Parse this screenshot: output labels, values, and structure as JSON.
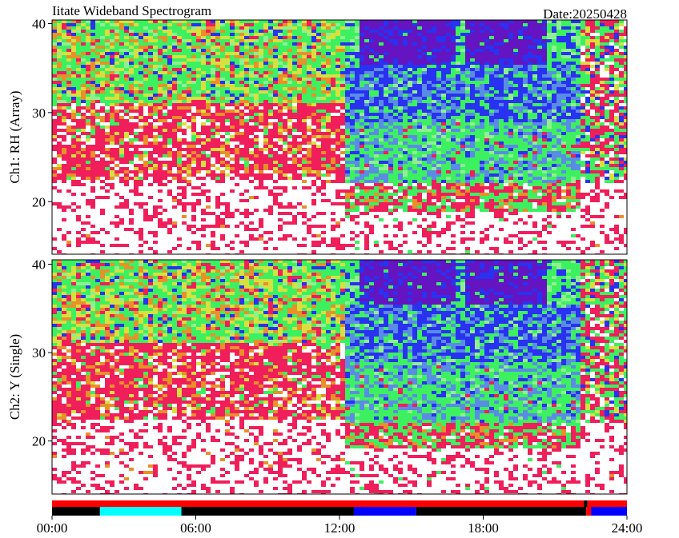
{
  "title": "Iitate Wideband Spectrogram",
  "date_label": "Date:20250428",
  "chart_data": [
    {
      "type": "spectrogram",
      "ylabel": "Ch1: RH (Array)",
      "xlim": [
        0,
        24
      ],
      "ylim": [
        14.1,
        40.4
      ],
      "yticks": [
        20,
        30,
        40
      ]
    },
    {
      "type": "spectrogram",
      "ylabel": "Ch2: Y (Single)",
      "xlim": [
        0,
        24
      ],
      "ylim": [
        14,
        40.5
      ],
      "yticks": [
        20,
        30,
        40
      ],
      "xticks": [
        {
          "value": 0,
          "label": "00:00"
        },
        {
          "value": 6,
          "label": "06:00"
        },
        {
          "value": 12,
          "label": "12:00"
        },
        {
          "value": 18,
          "label": "18:00"
        },
        {
          "value": 24,
          "label": "24:00"
        }
      ]
    }
  ],
  "status_bars": {
    "xlim": [
      0,
      24
    ],
    "rows": [
      [
        {
          "start": 0,
          "end": 22.2,
          "color": "#ff0000"
        },
        {
          "start": 22.2,
          "end": 22.35,
          "color": "#000000"
        },
        {
          "start": 22.35,
          "end": 24,
          "color": "#ff0000"
        }
      ],
      [
        {
          "start": 0,
          "end": 2,
          "color": "#000000"
        },
        {
          "start": 2,
          "end": 5.4,
          "color": "#00ffff"
        },
        {
          "start": 5.4,
          "end": 12.6,
          "color": "#000000"
        },
        {
          "start": 12.6,
          "end": 15.2,
          "color": "#0000ff"
        },
        {
          "start": 15.2,
          "end": 22.3,
          "color": "#000000"
        },
        {
          "start": 22.3,
          "end": 22.5,
          "color": "#ff0000"
        },
        {
          "start": 22.5,
          "end": 24,
          "color": "#0000ff"
        }
      ]
    ]
  }
}
